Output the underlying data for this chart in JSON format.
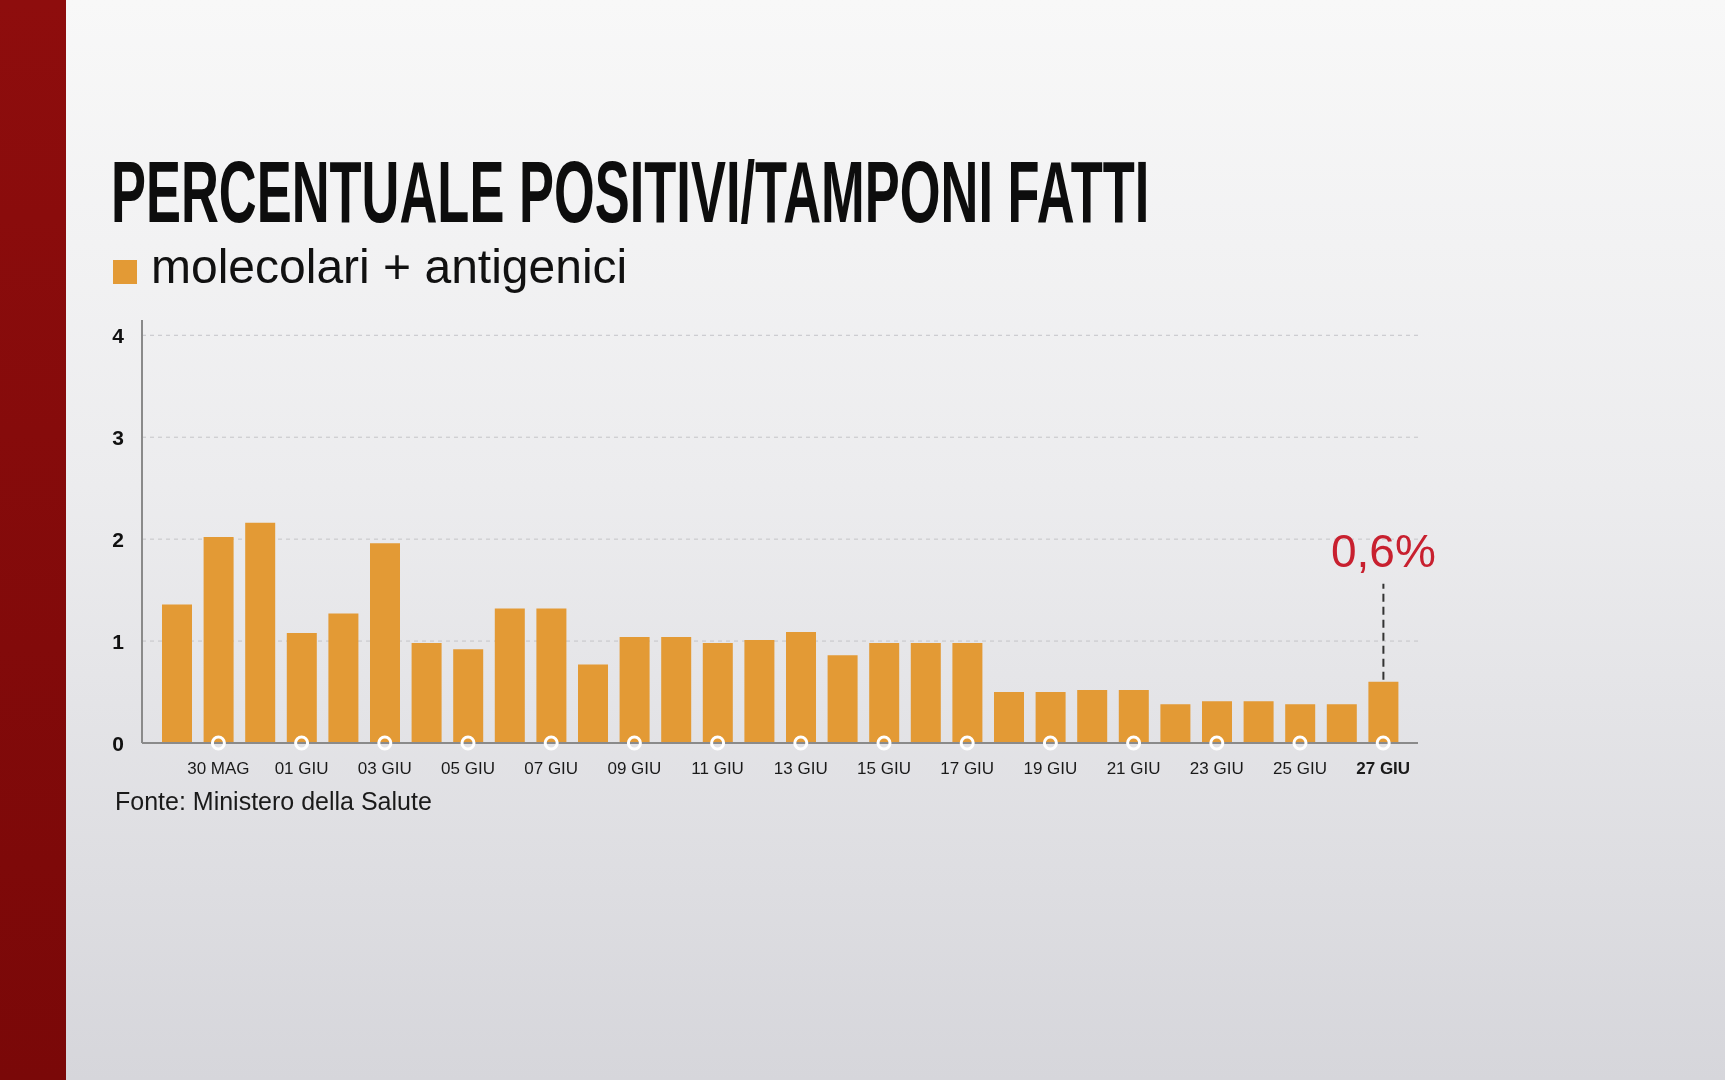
{
  "chart_data": {
    "type": "bar",
    "title": "PERCENTUALE POSITIVI/TAMPONI FATTI",
    "categories": [
      null,
      "30 MAG",
      null,
      "01 GIU",
      null,
      "03 GIU",
      null,
      "05 GIU",
      null,
      "07 GIU",
      null,
      "09 GIU",
      null,
      "11 GIU",
      null,
      "13 GIU",
      null,
      "15 GIU",
      null,
      "17 GIU",
      null,
      "19 GIU",
      null,
      "21 GIU",
      null,
      "23 GIU",
      null,
      "25 GIU",
      null,
      "27 GIU"
    ],
    "series": [
      {
        "name": "molecolari + antigenici",
        "color": "#e39a35",
        "values": [
          1.36,
          2.02,
          2.16,
          1.08,
          1.27,
          1.96,
          0.98,
          0.92,
          1.32,
          1.32,
          0.77,
          1.04,
          1.04,
          0.98,
          1.01,
          1.09,
          0.86,
          0.98,
          0.98,
          0.98,
          0.5,
          0.5,
          0.52,
          0.52,
          0.38,
          0.41,
          0.41,
          0.38,
          0.38,
          0.6
        ],
        "value_labels": [
          null,
          null,
          null,
          null,
          null,
          null,
          null,
          null,
          null,
          null,
          null,
          null,
          null,
          null,
          null,
          null,
          null,
          null,
          null,
          null,
          null,
          null,
          null,
          null,
          null,
          null,
          null,
          null,
          null,
          "0,6%"
        ]
      }
    ],
    "ylim": [
      0,
      4.15
    ],
    "yticks": [
      0,
      1,
      2,
      3,
      4
    ],
    "grid": "y",
    "legend": "top left",
    "annotations": [
      "Fonte: Ministero della Salute"
    ]
  }
}
